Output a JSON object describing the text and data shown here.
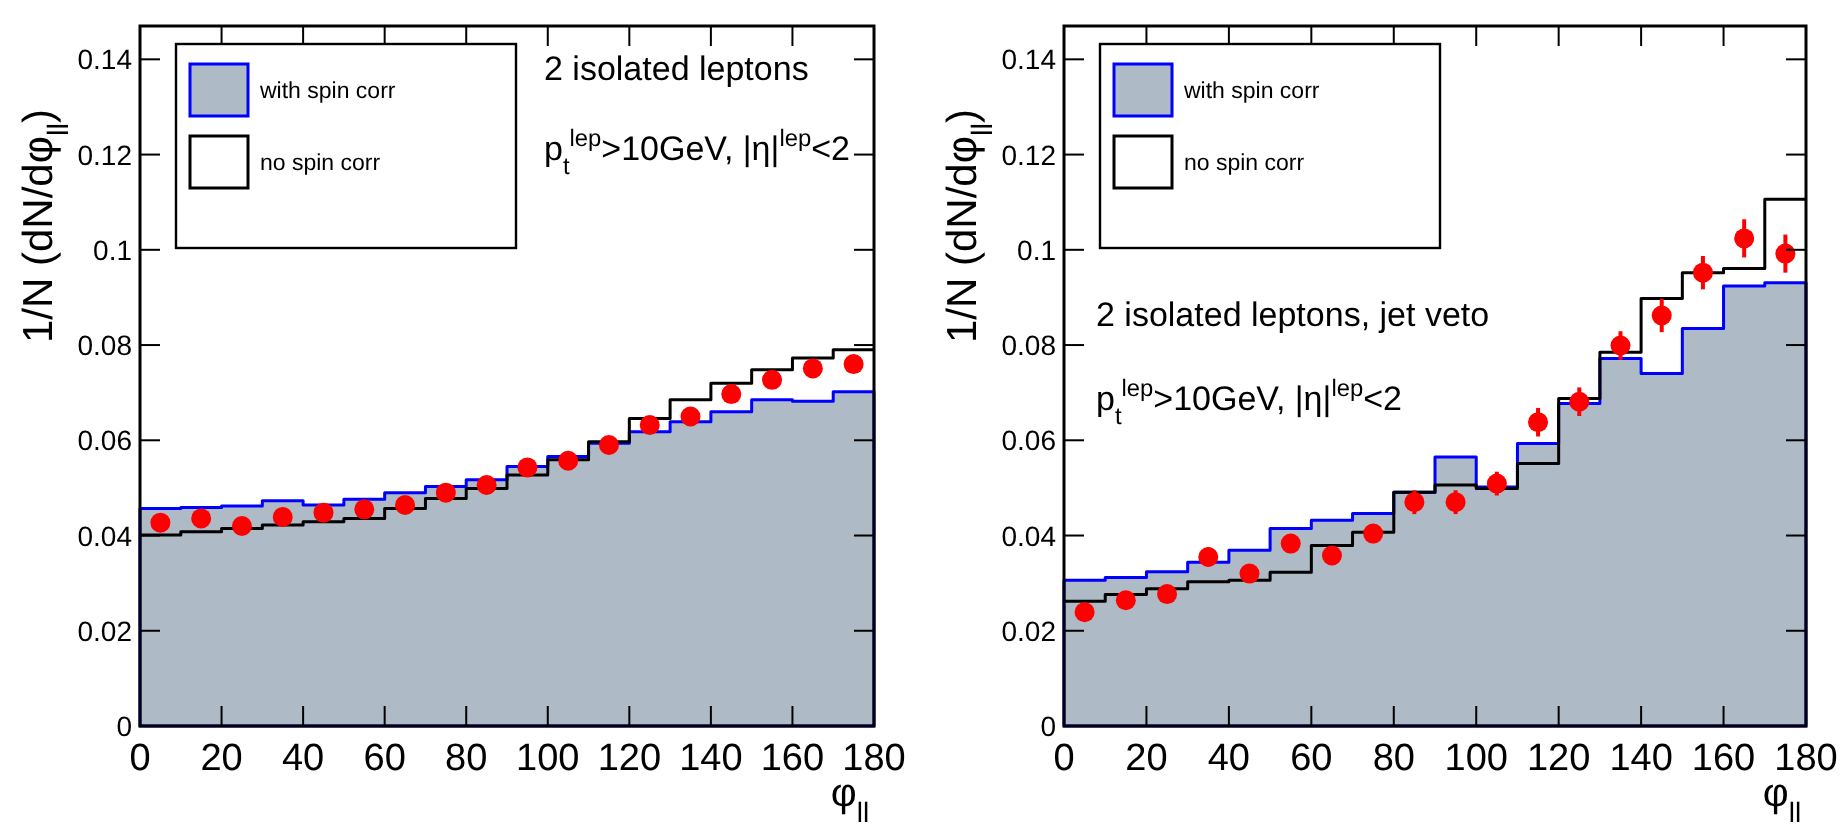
{
  "chart_data": [
    {
      "type": "histogram",
      "ylabel": "1/N (dN/dφ$_{ll}$)",
      "xlabel": "φ$_{ll}$",
      "bins": [
        0,
        10,
        20,
        30,
        40,
        50,
        60,
        70,
        80,
        90,
        100,
        110,
        120,
        130,
        140,
        150,
        160,
        170,
        180
      ],
      "xlim": [
        0,
        180
      ],
      "ylim": [
        0,
        0.147
      ],
      "xticks": [
        0,
        20,
        40,
        60,
        80,
        100,
        120,
        140,
        160,
        180
      ],
      "yticks": [
        0,
        0.02,
        0.04,
        0.06,
        0.08,
        0.1,
        0.12,
        0.14
      ],
      "legend": "top left",
      "annotations": [
        "2 isolated leptons",
        "p$_{t}$$^{lep}$>10GeV, |η|$^{lep}$<2"
      ],
      "series": [
        {
          "name": "with spin corr",
          "color": "#0000ff",
          "values": [
            0.0457,
            0.0459,
            0.0462,
            0.0473,
            0.0464,
            0.0476,
            0.049,
            0.0503,
            0.0517,
            0.0545,
            0.0566,
            0.0594,
            0.0618,
            0.0639,
            0.066,
            0.0685,
            0.0682,
            0.0702
          ]
        },
        {
          "name": "no spin corr",
          "color": "#000000",
          "values": [
            0.0401,
            0.0408,
            0.0415,
            0.0422,
            0.0429,
            0.0436,
            0.0457,
            0.0478,
            0.0499,
            0.0527,
            0.0559,
            0.0597,
            0.0646,
            0.0685,
            0.072,
            0.0748,
            0.0773,
            0.079
          ]
        },
        {
          "type": "scatter",
          "color": "#ff0000",
          "marker": "circle",
          "x": [
            5,
            15,
            25,
            35,
            45,
            55,
            65,
            75,
            85,
            95,
            105,
            115,
            125,
            135,
            145,
            155,
            165,
            175
          ],
          "values": [
            0.0427,
            0.0436,
            0.042,
            0.0439,
            0.0448,
            0.0455,
            0.0464,
            0.049,
            0.0506,
            0.0543,
            0.0557,
            0.059,
            0.0632,
            0.065,
            0.0697,
            0.0727,
            0.0751,
            0.076
          ]
        }
      ]
    },
    {
      "type": "histogram",
      "ylabel": "1/N (dN/dφ$_{ll}$)",
      "xlabel": "φ$_{ll}$",
      "bins": [
        0,
        10,
        20,
        30,
        40,
        50,
        60,
        70,
        80,
        90,
        100,
        110,
        120,
        130,
        140,
        150,
        160,
        170,
        180
      ],
      "xlim": [
        0,
        180
      ],
      "ylim": [
        0,
        0.147
      ],
      "xticks": [
        0,
        20,
        40,
        60,
        80,
        100,
        120,
        140,
        160,
        180
      ],
      "yticks": [
        0,
        0.02,
        0.04,
        0.06,
        0.08,
        0.1,
        0.12,
        0.14
      ],
      "legend": "top left",
      "annotations": [
        "2 isolated leptons, jet veto",
        "p$_{t}$$^{lep}$>10GeV, |η|$^{lep}$<2"
      ],
      "series": [
        {
          "name": "with spin corr",
          "color": "#0000ff",
          "values": [
            0.0306,
            0.0312,
            0.0324,
            0.0344,
            0.0369,
            0.0415,
            0.0432,
            0.0446,
            0.0491,
            0.0565,
            0.0502,
            0.0593,
            0.0677,
            0.0772,
            0.074,
            0.0835,
            0.0924,
            0.0931
          ]
        },
        {
          "name": "no spin corr",
          "color": "#000000",
          "values": [
            0.0262,
            0.0276,
            0.0288,
            0.0303,
            0.0306,
            0.0323,
            0.0379,
            0.0407,
            0.0491,
            0.0506,
            0.0499,
            0.0551,
            0.0688,
            0.0785,
            0.0898,
            0.0952,
            0.0961,
            0.1106
          ]
        },
        {
          "type": "scatter",
          "color": "#ff0000",
          "marker": "circle",
          "x": [
            5,
            15,
            25,
            35,
            45,
            55,
            65,
            75,
            85,
            95,
            105,
            115,
            125,
            135,
            145,
            155,
            165,
            175
          ],
          "values": [
            0.0239,
            0.0264,
            0.0277,
            0.0355,
            0.032,
            0.0383,
            0.0358,
            0.0404,
            0.047,
            0.047,
            0.0509,
            0.0638,
            0.0681,
            0.0799,
            0.0862,
            0.0952,
            0.1024,
            0.0992
          ],
          "errors": [
            0.0015,
            0.0015,
            0.0015,
            0.002,
            0.0015,
            0.002,
            0.002,
            0.002,
            0.0025,
            0.0025,
            0.0025,
            0.003,
            0.003,
            0.003,
            0.0035,
            0.0035,
            0.004,
            0.004
          ]
        }
      ]
    }
  ]
}
